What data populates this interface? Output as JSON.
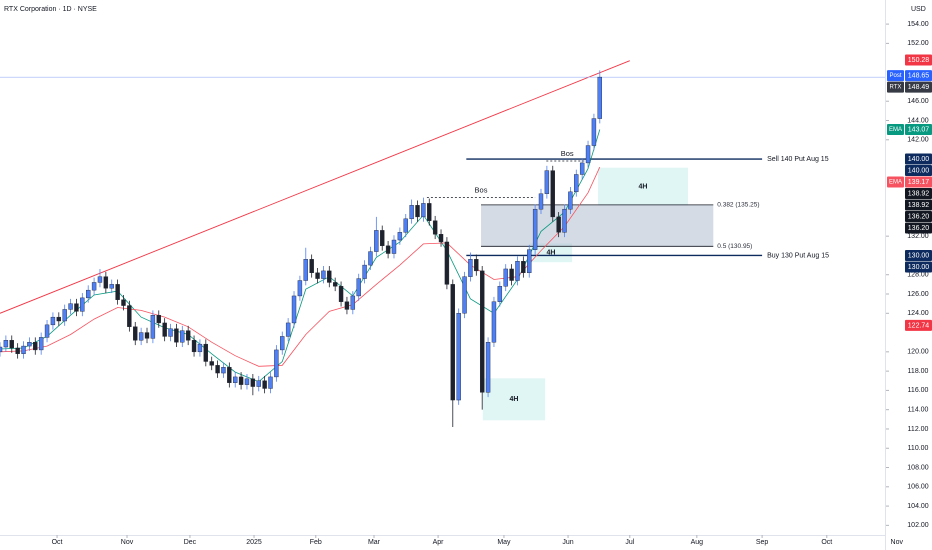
{
  "chart_data": {
    "type": "candlestick",
    "title": "RTX Corporation · 1D · NYSE",
    "currency": "USD",
    "up_color": "#4f7ff5",
    "down_color": "#1e222d",
    "xlim": [
      0,
      150.5
    ],
    "ylim": [
      101,
      156.5
    ],
    "xticks": [
      {
        "value": 9.7,
        "label": "Oct"
      },
      {
        "value": 21.6,
        "label": "Nov"
      },
      {
        "value": 32.3,
        "label": "Dec"
      },
      {
        "value": 43.2,
        "label": "2025"
      },
      {
        "value": 53.7,
        "label": "Feb"
      },
      {
        "value": 63.6,
        "label": "Mar"
      },
      {
        "value": 74.5,
        "label": "Apr"
      },
      {
        "value": 85.7,
        "label": "May"
      },
      {
        "value": 96.6,
        "label": "Jun"
      },
      {
        "value": 107.1,
        "label": "Jul"
      },
      {
        "value": 118.5,
        "label": "Aug"
      },
      {
        "value": 129.6,
        "label": "Sep"
      },
      {
        "value": 140.6,
        "label": "Oct"
      },
      {
        "value": 152.5,
        "label": "Nov"
      }
    ],
    "yticks": [
      {
        "value": 154,
        "label": "154.00"
      },
      {
        "value": 152,
        "label": "152.00"
      },
      {
        "value": 146,
        "label": "146.00"
      },
      {
        "value": 144,
        "label": "144.00"
      },
      {
        "value": 142,
        "label": "142.00"
      },
      {
        "value": 132,
        "label": "132.00"
      },
      {
        "value": 128,
        "label": "128.00"
      },
      {
        "value": 126,
        "label": "126.00"
      },
      {
        "value": 124,
        "label": "124.00"
      },
      {
        "value": 120,
        "label": "120.00"
      },
      {
        "value": 118,
        "label": "118.00"
      },
      {
        "value": 116,
        "label": "116.00"
      },
      {
        "value": 114,
        "label": "114.00"
      },
      {
        "value": 112,
        "label": "112.00"
      },
      {
        "value": 110,
        "label": "110.00"
      },
      {
        "value": 108,
        "label": "108.00"
      },
      {
        "value": 106,
        "label": "106.00"
      },
      {
        "value": 104,
        "label": "104.00"
      },
      {
        "value": 102,
        "label": "102.00"
      }
    ],
    "ohlc": [
      [
        120.0,
        121.0,
        119.5,
        120.5
      ],
      [
        120.5,
        121.7,
        120.0,
        121.2
      ],
      [
        121.2,
        121.7,
        119.9,
        120.4
      ],
      [
        120.4,
        120.9,
        119.3,
        119.8
      ],
      [
        119.8,
        121.1,
        119.3,
        120.6
      ],
      [
        120.6,
        121.5,
        120.1,
        121.0
      ],
      [
        121.0,
        121.5,
        119.7,
        120.2
      ],
      [
        120.2,
        122.0,
        119.7,
        121.5
      ],
      [
        121.5,
        123.3,
        121.0,
        122.8
      ],
      [
        122.8,
        124.1,
        122.3,
        123.6
      ],
      [
        123.6,
        124.1,
        122.7,
        123.2
      ],
      [
        123.2,
        124.9,
        122.7,
        124.4
      ],
      [
        124.4,
        125.5,
        123.9,
        125.0
      ],
      [
        125.0,
        125.5,
        123.7,
        124.2
      ],
      [
        124.2,
        126.1,
        123.7,
        125.6
      ],
      [
        125.6,
        126.9,
        125.1,
        126.4
      ],
      [
        126.4,
        127.7,
        125.9,
        127.2
      ],
      [
        127.2,
        128.6,
        126.7,
        127.8
      ],
      [
        127.8,
        128.3,
        126.1,
        126.6
      ],
      [
        126.6,
        127.5,
        126.1,
        127.0
      ],
      [
        127.0,
        127.5,
        124.9,
        125.4
      ],
      [
        125.4,
        125.9,
        124.3,
        124.8
      ],
      [
        124.8,
        125.3,
        122.1,
        122.6
      ],
      [
        122.6,
        123.1,
        120.7,
        121.2
      ],
      [
        121.2,
        122.5,
        120.7,
        122.0
      ],
      [
        122.0,
        122.5,
        120.9,
        121.4
      ],
      [
        121.4,
        124.3,
        120.9,
        123.8
      ],
      [
        123.8,
        124.3,
        122.5,
        123.0
      ],
      [
        123.0,
        123.5,
        121.1,
        121.6
      ],
      [
        121.6,
        122.9,
        121.1,
        122.4
      ],
      [
        122.4,
        122.9,
        120.5,
        121.0
      ],
      [
        121.0,
        122.7,
        120.5,
        122.2
      ],
      [
        122.2,
        122.7,
        120.7,
        121.2
      ],
      [
        121.2,
        121.7,
        119.5,
        120.0
      ],
      [
        120.0,
        121.3,
        119.5,
        120.8
      ],
      [
        120.8,
        121.3,
        118.5,
        119.0
      ],
      [
        119.0,
        119.5,
        118.1,
        118.6
      ],
      [
        118.6,
        119.1,
        117.3,
        117.8
      ],
      [
        117.8,
        118.9,
        117.3,
        118.4
      ],
      [
        118.4,
        118.9,
        116.3,
        116.8
      ],
      [
        116.8,
        117.9,
        116.3,
        117.4
      ],
      [
        117.4,
        117.9,
        116.1,
        116.6
      ],
      [
        116.6,
        117.7,
        116.1,
        117.2
      ],
      [
        117.2,
        117.7,
        115.5,
        116.4
      ],
      [
        116.4,
        117.5,
        115.9,
        117.0
      ],
      [
        117.0,
        117.5,
        115.7,
        116.2
      ],
      [
        116.2,
        117.9,
        115.7,
        117.4
      ],
      [
        117.4,
        120.7,
        116.9,
        120.2
      ],
      [
        120.2,
        122.1,
        119.7,
        121.6
      ],
      [
        121.6,
        123.5,
        121.1,
        123.0
      ],
      [
        123.0,
        126.3,
        122.5,
        125.8
      ],
      [
        125.8,
        127.9,
        125.3,
        127.4
      ],
      [
        127.4,
        130.8,
        126.9,
        129.6
      ],
      [
        129.6,
        130.1,
        127.7,
        128.2
      ],
      [
        128.2,
        128.7,
        127.1,
        127.6
      ],
      [
        127.6,
        128.9,
        127.1,
        128.4
      ],
      [
        128.4,
        128.9,
        126.7,
        127.2
      ],
      [
        127.2,
        127.7,
        126.3,
        126.8
      ],
      [
        126.8,
        127.3,
        124.7,
        125.2
      ],
      [
        125.2,
        125.7,
        123.9,
        124.4
      ],
      [
        124.4,
        126.3,
        123.9,
        125.8
      ],
      [
        125.8,
        128.1,
        125.3,
        127.6
      ],
      [
        127.6,
        129.5,
        127.1,
        129.0
      ],
      [
        129.0,
        130.9,
        128.5,
        130.4
      ],
      [
        130.4,
        134.0,
        129.9,
        132.6
      ],
      [
        132.6,
        133.1,
        130.5,
        131.0
      ],
      [
        131.0,
        131.5,
        129.7,
        130.2
      ],
      [
        130.2,
        132.1,
        129.7,
        131.6
      ],
      [
        131.6,
        132.9,
        131.1,
        132.4
      ],
      [
        132.4,
        134.3,
        131.9,
        133.8
      ],
      [
        133.8,
        135.8,
        133.3,
        135.2
      ],
      [
        135.2,
        135.7,
        133.5,
        134.0
      ],
      [
        134.0,
        136.0,
        133.5,
        135.4
      ],
      [
        135.4,
        135.9,
        133.1,
        133.6
      ],
      [
        133.6,
        134.1,
        131.7,
        132.2
      ],
      [
        132.2,
        132.7,
        130.9,
        131.4
      ],
      [
        131.4,
        131.9,
        126.5,
        127.0
      ],
      [
        127.0,
        127.5,
        112.2,
        115.0
      ],
      [
        115.0,
        124.5,
        114.5,
        124.0
      ],
      [
        124.0,
        128.3,
        123.5,
        127.8
      ],
      [
        127.8,
        130.3,
        127.3,
        129.6
      ],
      [
        129.6,
        130.1,
        127.9,
        128.4
      ],
      [
        128.4,
        128.9,
        114.0,
        115.8
      ],
      [
        115.8,
        121.5,
        115.3,
        121.0
      ],
      [
        121.0,
        125.7,
        120.5,
        125.2
      ],
      [
        125.2,
        127.3,
        124.7,
        126.8
      ],
      [
        126.8,
        129.1,
        126.3,
        128.6
      ],
      [
        128.6,
        129.1,
        126.9,
        127.4
      ],
      [
        127.4,
        129.9,
        126.9,
        129.4
      ],
      [
        129.4,
        129.9,
        127.7,
        128.2
      ],
      [
        128.2,
        131.1,
        127.7,
        130.6
      ],
      [
        130.6,
        135.3,
        130.1,
        134.8
      ],
      [
        134.8,
        136.9,
        134.3,
        136.4
      ],
      [
        136.4,
        139.3,
        135.9,
        138.8
      ],
      [
        138.8,
        139.3,
        133.5,
        134.0
      ],
      [
        134.0,
        134.5,
        131.9,
        132.4
      ],
      [
        132.4,
        135.3,
        131.9,
        134.8
      ],
      [
        134.8,
        137.1,
        134.3,
        136.6
      ],
      [
        136.6,
        138.9,
        136.1,
        138.4
      ],
      [
        138.4,
        140.1,
        137.9,
        139.6
      ],
      [
        139.6,
        141.9,
        139.1,
        141.4
      ],
      [
        141.4,
        144.7,
        140.9,
        144.2
      ],
      [
        144.2,
        149.2,
        143.7,
        148.5
      ]
    ],
    "series": [
      {
        "name": "EMA",
        "color": "#089981",
        "x": [
          0,
          4,
          8,
          12,
          16,
          20,
          24,
          28,
          32,
          36,
          40,
          44,
          48,
          52,
          56,
          60,
          64,
          68,
          72,
          76,
          80,
          84,
          88,
          92,
          96,
          100,
          102
        ],
        "values": [
          120.3,
          120.4,
          121.6,
          123.8,
          125.9,
          126.3,
          123.6,
          122.5,
          121.8,
          119.8,
          117.9,
          116.9,
          119.0,
          126.5,
          127.8,
          125.8,
          129.8,
          131.4,
          134.2,
          130.5,
          125.5,
          124.0,
          127.5,
          132.5,
          134.5,
          139.0,
          143.07
        ]
      },
      {
        "name": "EMA",
        "color": "#f7525f",
        "x": [
          0,
          4,
          8,
          12,
          16,
          20,
          24,
          28,
          32,
          36,
          40,
          44,
          48,
          52,
          56,
          60,
          64,
          68,
          72,
          76,
          80,
          84,
          88,
          92,
          96,
          100,
          102
        ],
        "values": [
          120.0,
          120.1,
          120.6,
          121.8,
          123.4,
          124.6,
          124.3,
          123.6,
          122.6,
          121.0,
          119.6,
          118.5,
          118.6,
          121.8,
          124.2,
          124.9,
          127.0,
          129.0,
          131.2,
          131.3,
          129.0,
          127.5,
          127.8,
          130.5,
          133.0,
          136.5,
          139.17
        ]
      }
    ],
    "trendline": {
      "color": "#f23645",
      "x": [
        0,
        107.1
      ],
      "values": [
        124.0,
        150.2
      ]
    },
    "levels": [
      {
        "label": "Sell 140 Put Aug 15",
        "value": 140,
        "x": [
          79.3,
          129.6
        ],
        "color": "#0d2b5e"
      },
      {
        "label": "Buy 130 Put Aug 15",
        "value": 130,
        "x": [
          79.3,
          129.6
        ],
        "color": "#0d2b5e"
      }
    ],
    "bos": [
      {
        "label": "Bos",
        "value": 136.0,
        "x": [
          72.6,
          91.0
        ]
      },
      {
        "label": "Bos",
        "value": 139.8,
        "x": [
          92.9,
          100.0
        ]
      }
    ],
    "fib_box": {
      "x": [
        81.8,
        121.3
      ],
      "color": "#b2bdd0",
      "levels": [
        {
          "value": 135.25,
          "label": "0.382 (135.25)"
        },
        {
          "value": 130.95,
          "label": "0.5 (130.95)"
        }
      ]
    },
    "zones": [
      {
        "label": "4H",
        "x": [
          101.7,
          117.0
        ],
        "values": [
          139.1,
          135.2
        ]
      },
      {
        "label": "4H",
        "x": [
          90.1,
          97.3
        ],
        "values": [
          131.25,
          129.3
        ]
      },
      {
        "label": "4H",
        "x": [
          82.1,
          92.7
        ],
        "values": [
          117.25,
          112.9
        ]
      }
    ],
    "zone_color": "#d9f5f3",
    "price_tags": [
      {
        "value": 150.28,
        "color": "#f23645"
      },
      {
        "name": "Post",
        "value": 148.65,
        "color": "#2962ff"
      },
      {
        "name": "RTX",
        "value": 148.49,
        "color": "#363a45"
      },
      {
        "name": "EMA",
        "value": 143.07,
        "color": "#089981"
      },
      {
        "value": 140,
        "label": "140.00",
        "color": "#0d2b5e"
      },
      {
        "value": 140,
        "label": "140.00",
        "color": "#0d2b5e"
      },
      {
        "name": "EMA",
        "value": 139.17,
        "color": "#f7525f"
      },
      {
        "value": 138.92,
        "color": "#131722"
      },
      {
        "value": 138.92,
        "color": "#131722"
      },
      {
        "value": 136.2,
        "label": "136.20",
        "color": "#131722"
      },
      {
        "value": 136.2,
        "label": "136.20",
        "color": "#131722"
      },
      {
        "value": 130,
        "label": "130.00",
        "color": "#0d2b5e"
      },
      {
        "value": 130,
        "label": "130.00",
        "color": "#0d2b5e"
      },
      {
        "value": 122.74,
        "color": "#f23645"
      }
    ]
  }
}
